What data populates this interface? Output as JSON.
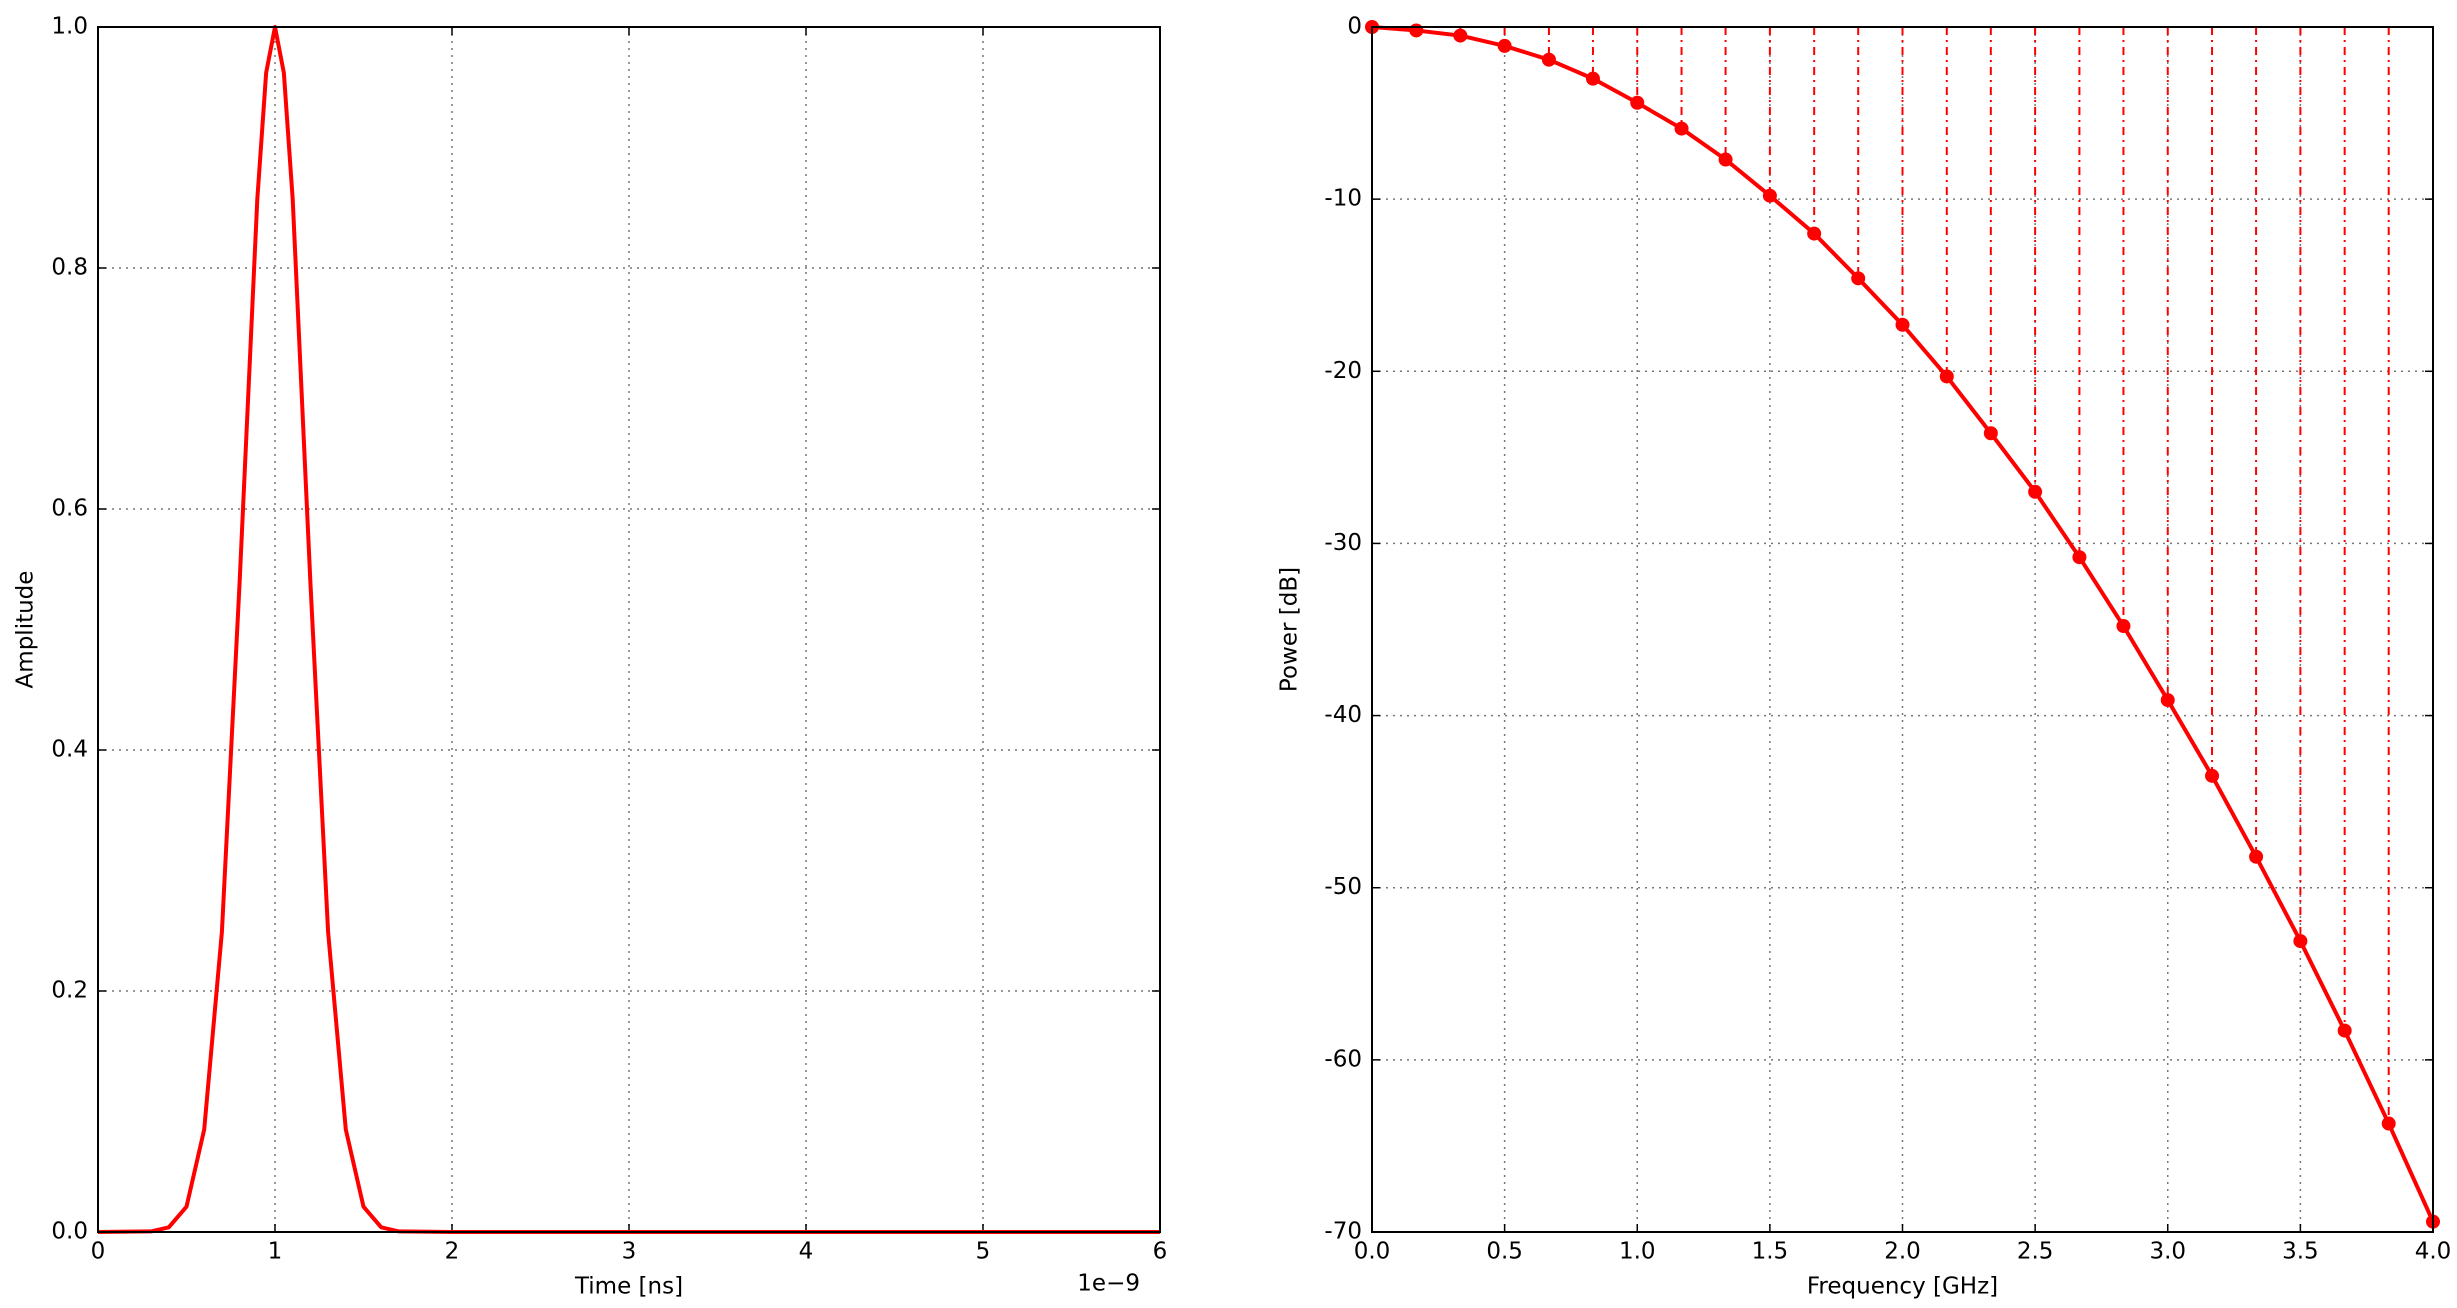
{
  "chart_data": [
    {
      "type": "line",
      "xlabel": "Time [ns]",
      "ylabel": "Amplitude",
      "x_offset_text": "1e−9",
      "x": [
        0,
        0.3,
        0.4,
        0.5,
        0.6,
        0.7,
        0.8,
        0.9,
        0.95,
        1.0,
        1.05,
        1.1,
        1.2,
        1.3,
        1.4,
        1.5,
        1.6,
        1.7,
        2,
        3,
        4,
        5,
        6
      ],
      "series": [
        {
          "color": "#ff0000",
          "values": [
            0,
            0.0005,
            0.0039,
            0.021,
            0.085,
            0.249,
            0.539,
            0.857,
            0.962,
            1.0,
            0.962,
            0.857,
            0.539,
            0.249,
            0.085,
            0.021,
            0.0039,
            0.0005,
            0,
            0,
            0,
            0,
            0
          ]
        }
      ],
      "xlim": [
        0,
        6
      ],
      "xticks": [
        0,
        1,
        2,
        3,
        4,
        5,
        6
      ],
      "ylim": [
        0,
        1
      ],
      "yticks": [
        {
          "value": 0,
          "label": "0.0"
        },
        0.2,
        0.4,
        0.6,
        0.8,
        {
          "value": 1,
          "label": "1.0"
        }
      ],
      "grid": true,
      "markers": false,
      "stems": false
    },
    {
      "type": "line",
      "xlabel": "Frequency [GHz]",
      "ylabel": "Power [dB]",
      "x": [
        0,
        0.167,
        0.333,
        0.5,
        0.667,
        0.833,
        1.0,
        1.167,
        1.333,
        1.5,
        1.667,
        1.833,
        2.0,
        2.167,
        2.333,
        2.5,
        2.667,
        2.833,
        3.0,
        3.167,
        3.333,
        3.5,
        3.667,
        3.833,
        4.0
      ],
      "series": [
        {
          "color": "#ff0000",
          "values": [
            0,
            -0.2,
            -0.5,
            -1.1,
            -1.9,
            -3.0,
            -4.4,
            -5.9,
            -7.7,
            -9.8,
            -12.0,
            -14.6,
            -17.3,
            -20.3,
            -23.6,
            -27.0,
            -30.8,
            -34.8,
            -39.1,
            -43.5,
            -48.2,
            -53.1,
            -58.3,
            -63.7,
            -69.4
          ]
        }
      ],
      "xlim": [
        0,
        4
      ],
      "xticks": [
        {
          "value": 0,
          "label": "0.0"
        },
        0.5,
        {
          "value": 1,
          "label": "1.0"
        },
        1.5,
        {
          "value": 2,
          "label": "2.0"
        },
        2.5,
        {
          "value": 3,
          "label": "3.0"
        },
        3.5,
        {
          "value": 4,
          "label": "4.0"
        }
      ],
      "ylim": [
        -70,
        0
      ],
      "yticks": [
        -70,
        -60,
        -50,
        -40,
        -30,
        -20,
        -10,
        0
      ],
      "grid": true,
      "markers": true,
      "stems": true
    }
  ]
}
